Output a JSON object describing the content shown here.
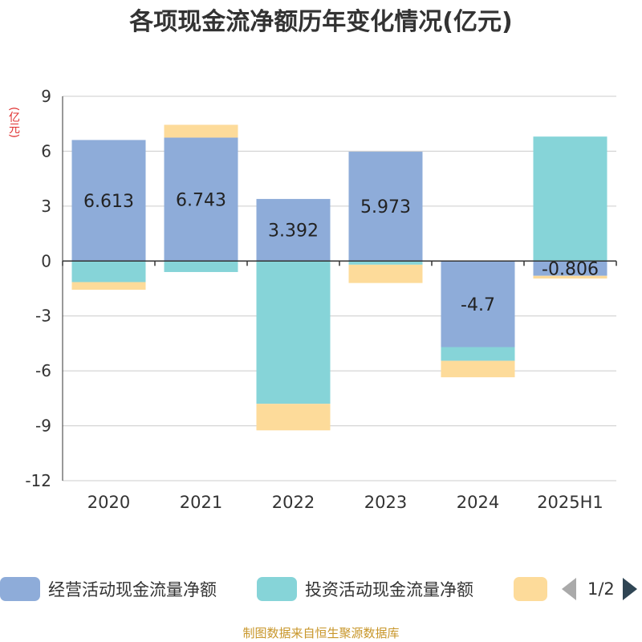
{
  "chart_data": {
    "type": "bar",
    "stacked": true,
    "title": "各项现金流净额历年变化情况(亿元)",
    "unit_label": "(亿元)",
    "categories": [
      "2020",
      "2021",
      "2022",
      "2023",
      "2024",
      "2025H1"
    ],
    "ylim": [
      -12,
      9
    ],
    "yticks": [
      9,
      6,
      3,
      0,
      -3,
      -6,
      -9,
      -12
    ],
    "grid": true,
    "series": [
      {
        "name": "经营活动现金流量净额",
        "color": "#8eacd9",
        "values": [
          6.613,
          6.743,
          3.392,
          5.973,
          -4.7,
          -0.806
        ],
        "labels": [
          "6.613",
          "6.743",
          "3.392",
          "5.973",
          "-4.7",
          "-0.806"
        ]
      },
      {
        "name": "投资活动现金流量净额",
        "color": "#86d4d8",
        "values": [
          -1.15,
          -0.6,
          -7.8,
          -0.2,
          -0.75,
          6.8
        ]
      },
      {
        "name": "",
        "color": "#fddb9a",
        "values": [
          -0.42,
          0.7,
          -1.45,
          -1.0,
          -0.9,
          -0.15
        ]
      }
    ]
  },
  "legend": {
    "page": "1/2"
  },
  "source": "制图数据来自恒生聚源数据库"
}
